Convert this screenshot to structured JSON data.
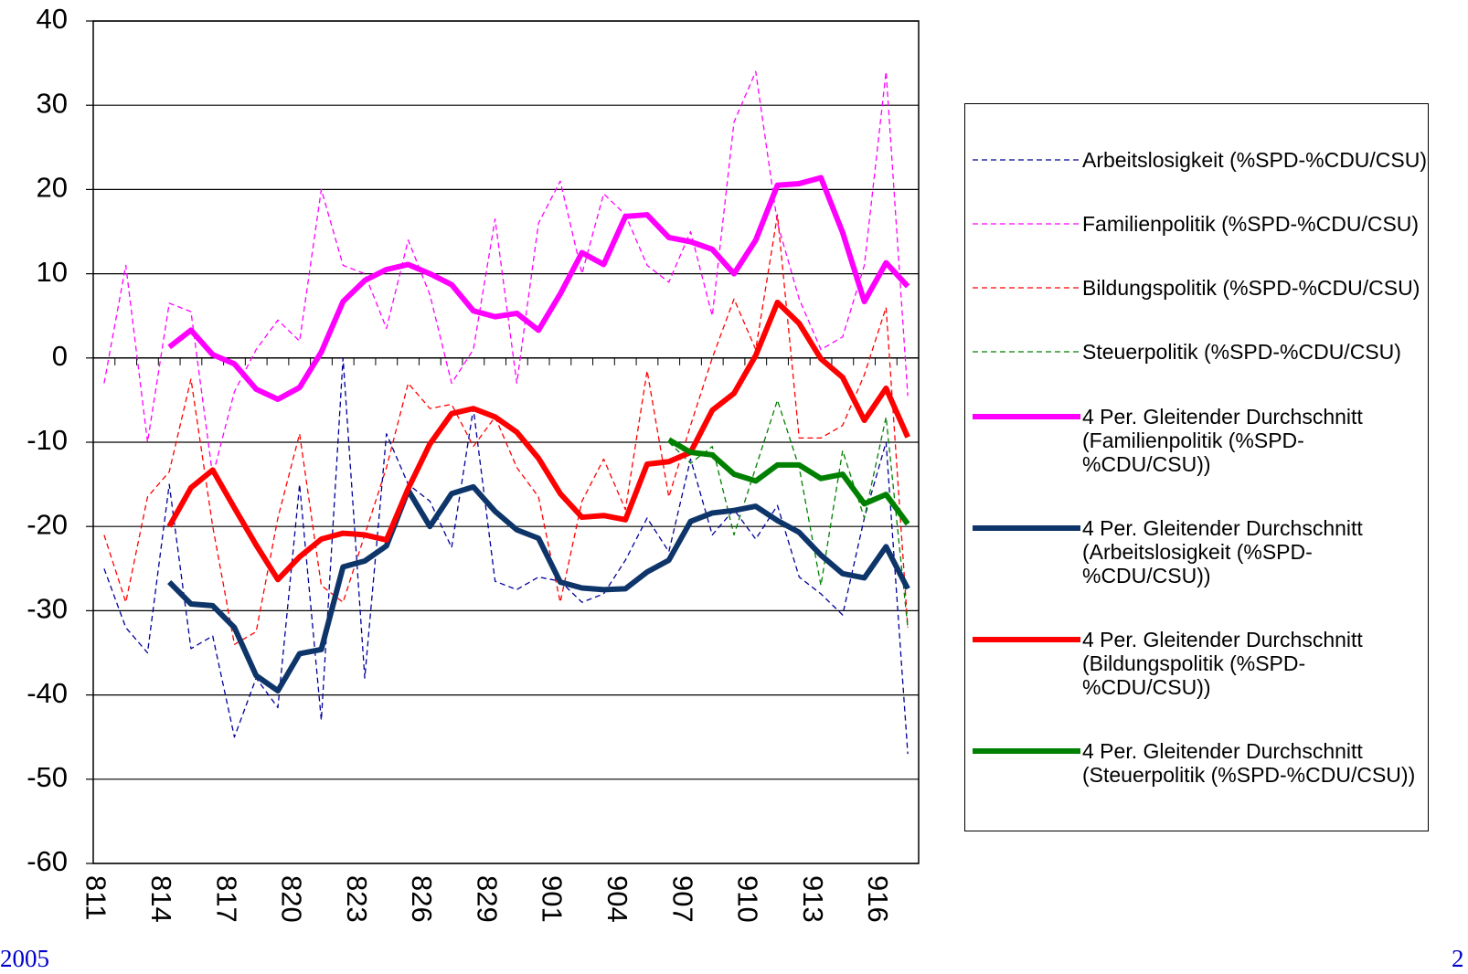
{
  "chart_data": {
    "type": "line",
    "categories": [
      "811",
      null,
      null,
      "814",
      null,
      null,
      "817",
      null,
      null,
      "820",
      null,
      null,
      "823",
      null,
      null,
      "826",
      null,
      null,
      "829",
      null,
      null,
      "901",
      null,
      null,
      "904",
      null,
      null,
      "907",
      null,
      null,
      "910",
      null,
      null,
      "913",
      null,
      null,
      "916",
      null
    ],
    "ylim": [
      -60,
      40
    ],
    "yticks": [
      -60,
      -50,
      -40,
      -30,
      -20,
      -10,
      0,
      10,
      20,
      30,
      40
    ],
    "grid": true,
    "series": [
      {
        "name": "Arbeitslosigkeit (%SPD-%CDU/CSU)",
        "color": "#000099",
        "line_style": "dashed",
        "values": [
          -25,
          -32,
          -35,
          -15,
          -34.5,
          -33,
          -45,
          -38,
          -41.5,
          -15,
          -43,
          0,
          -38,
          -9,
          -15,
          -17,
          -22.5,
          -6,
          -26.5,
          -27.5,
          -26,
          -26.5,
          -29,
          -28,
          -24,
          -19,
          -23,
          -12,
          -21,
          -18,
          -21.5,
          -17.5,
          -26,
          -28,
          -30.5,
          -19,
          -10,
          -47
        ]
      },
      {
        "name": "Familienpolitik (%SPD-%CDU/CSU)",
        "color": "#ff00ff",
        "line_style": "dashed",
        "values": [
          -3,
          11,
          -10,
          6.5,
          5.5,
          -14,
          -4,
          1,
          4.5,
          2,
          20,
          11,
          10,
          3.5,
          14,
          7.5,
          -3,
          1,
          16.5,
          -3,
          16,
          21,
          10,
          19.5,
          17,
          11,
          9,
          15,
          5,
          28,
          34,
          16,
          7,
          1,
          2.5,
          11,
          34,
          -4.5
        ]
      },
      {
        "name": "Bildungspolitik (%SPD-%CDU/CSU)",
        "color": "#ff0000",
        "line_style": "dashed",
        "values": [
          -21,
          -29,
          -16.5,
          -13.5,
          -2.5,
          -20,
          -34,
          -32.5,
          -19,
          -9,
          -27,
          -29,
          -21,
          -13,
          -3,
          -6,
          -5.5,
          -10.5,
          -7,
          -13,
          -16.5,
          -29,
          -17,
          -12,
          -18,
          -1.5,
          -16.5,
          -8,
          0,
          7,
          1,
          17,
          -9.5,
          -9.5,
          -8,
          -2,
          6,
          -32
        ]
      },
      {
        "name": "Steuerpolitik (%SPD-%CDU/CSU)",
        "color": "#008000",
        "line_style": "dashed",
        "values": [
          null,
          null,
          null,
          null,
          null,
          null,
          null,
          null,
          null,
          null,
          null,
          null,
          null,
          null,
          null,
          null,
          null,
          null,
          null,
          null,
          null,
          null,
          null,
          null,
          null,
          null,
          -10,
          -12.5,
          -10.5,
          -21,
          -13,
          -5,
          -13,
          -27,
          -11,
          -19,
          -7,
          -32
        ]
      },
      {
        "name": "4 Per. Gleitender Durchschnitt (Familienpolitik (%SPD-%CDU/CSU))",
        "color": "#ff00ff",
        "line_style": "solid",
        "values": [
          null,
          null,
          null,
          1.3,
          3.3,
          0.4,
          -0.7,
          -3.7,
          -4.9,
          -3.5,
          0.7,
          6.7,
          9.2,
          10.5,
          11.1,
          10,
          8.7,
          5.6,
          4.9,
          5.3,
          3.3,
          7.6,
          12.5,
          11.1,
          16.8,
          17,
          14.3,
          13.8,
          12.9,
          10,
          14,
          20.5,
          20.7,
          21.4,
          14.9,
          6.7,
          11.3,
          8.5
        ]
      },
      {
        "name": "4 Per. Gleitender Durchschnitt (Arbeitslosigkeit (%SPD-%CDU/CSU))",
        "color": "#0d3569",
        "line_style": "solid",
        "values": [
          null,
          null,
          null,
          -26.6,
          -29.2,
          -29.4,
          -32,
          -37.7,
          -39.5,
          -35.1,
          -34.6,
          -24.8,
          -24.1,
          -22.3,
          -15.7,
          -20,
          -16.1,
          -15.3,
          -18.2,
          -20.4,
          -21.4,
          -26.6,
          -27.3,
          -27.5,
          -27.4,
          -25.4,
          -24,
          -19.4,
          -18.4,
          -18.1,
          -17.6,
          -19.3,
          -20.7,
          -23.4,
          -25.6,
          -26.1,
          -22.4,
          -27.4
        ]
      },
      {
        "name": "4 Per. Gleitender Durchschnitt (Bildungspolitik (%SPD-%CDU/CSU))",
        "color": "#ff0000",
        "line_style": "solid",
        "values": [
          null,
          null,
          null,
          -20,
          -15.4,
          -13.3,
          -17.8,
          -22.2,
          -26.3,
          -23.6,
          -21.5,
          -20.8,
          -21,
          -21.6,
          -15.5,
          -10.2,
          -6.6,
          -6,
          -7,
          -8.8,
          -11.9,
          -16.1,
          -18.9,
          -18.7,
          -19.2,
          -12.6,
          -12.3,
          -11.2,
          -6.2,
          -4.2,
          0.3,
          6.6,
          4.1,
          -0.1,
          -2.3,
          -7.4,
          -3.6,
          -9.4
        ]
      },
      {
        "name": "4 Per. Gleitender Durchschnitt (Steuerpolitik (%SPD-%CDU/CSU))",
        "color": "#008000",
        "line_style": "solid",
        "values": [
          null,
          null,
          null,
          null,
          null,
          null,
          null,
          null,
          null,
          null,
          null,
          null,
          null,
          null,
          null,
          null,
          null,
          null,
          null,
          null,
          null,
          null,
          null,
          null,
          null,
          null,
          -9.7,
          -11.2,
          -11.5,
          -13.8,
          -14.6,
          -12.7,
          -12.7,
          -14.3,
          -13.8,
          -17.3,
          -16.2,
          -19.7
        ]
      }
    ]
  },
  "footer": {
    "left": "2005",
    "right": "2"
  }
}
